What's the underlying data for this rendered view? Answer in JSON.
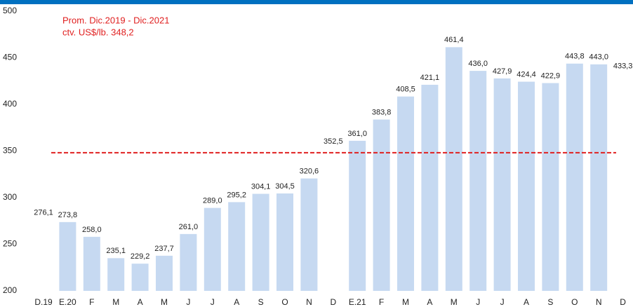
{
  "chart_data": {
    "type": "bar",
    "categories": [
      "D.19",
      "E.20",
      "F",
      "M",
      "A",
      "M",
      "J",
      "J",
      "A",
      "S",
      "O",
      "N",
      "D",
      "E.21",
      "F",
      "M",
      "A",
      "M",
      "J",
      "J",
      "A",
      "S",
      "O",
      "N",
      "D"
    ],
    "values": [
      276.1,
      273.8,
      258.0,
      235.1,
      229.2,
      237.7,
      261.0,
      289.0,
      295.2,
      304.1,
      304.5,
      320.6,
      352.5,
      361.0,
      383.8,
      408.5,
      421.1,
      461.4,
      436.0,
      427.9,
      424.4,
      422.9,
      443.8,
      443.0,
      433.3
    ],
    "value_labels": [
      "276,1",
      "273,8",
      "258,0",
      "235,1",
      "229,2",
      "237,7",
      "261,0",
      "289,0",
      "295,2",
      "304,1",
      "304,5",
      "320,6",
      "352,5",
      "361,0",
      "383,8",
      "408,5",
      "421,1",
      "461,4",
      "436,0",
      "427,9",
      "424,4",
      "422,9",
      "443,8",
      "443,0",
      "433,3"
    ],
    "colors": [
      "#ffffff",
      "#c6d9f1",
      "#c6d9f1",
      "#c6d9f1",
      "#c6d9f1",
      "#c6d9f1",
      "#c6d9f1",
      "#c6d9f1",
      "#c6d9f1",
      "#c6d9f1",
      "#c6d9f1",
      "#c6d9f1",
      "#ffffff",
      "#c6d9f1",
      "#c6d9f1",
      "#c6d9f1",
      "#c6d9f1",
      "#c6d9f1",
      "#c6d9f1",
      "#c6d9f1",
      "#c6d9f1",
      "#c6d9f1",
      "#c6d9f1",
      "#c6d9f1",
      "#ffffff"
    ],
    "ylim": [
      200,
      500
    ],
    "yticks": [
      200,
      250,
      300,
      350,
      400,
      450,
      500
    ],
    "grid": false,
    "reference_line": {
      "value": 348.2,
      "color": "#e02020"
    },
    "annotation": [
      "Prom. Dic.2019 - Dic.2021",
      "ctv. US$/lb. 348,2"
    ]
  }
}
